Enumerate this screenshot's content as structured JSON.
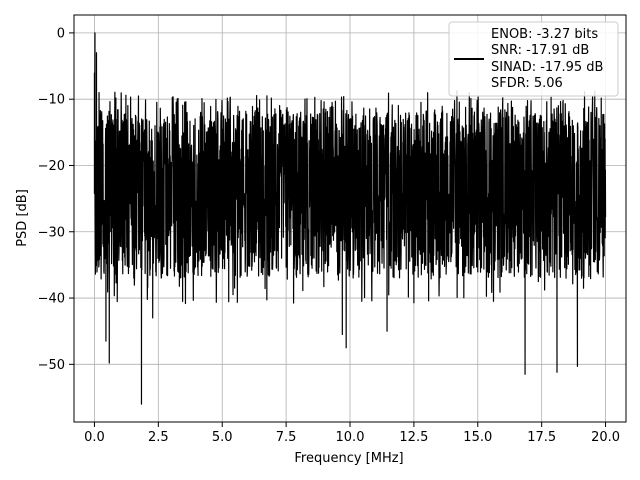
{
  "chart_data": {
    "type": "line",
    "title": "",
    "xlabel": "Frequency [MHz]",
    "ylabel": "PSD [dB]",
    "xlim": [
      -0.8,
      20.8
    ],
    "ylim": [
      -58.7,
      2.7
    ],
    "xticks": [
      0.0,
      2.5,
      5.0,
      7.5,
      10.0,
      12.5,
      15.0,
      17.5,
      20.0
    ],
    "xtick_labels": [
      "0.0",
      "2.5",
      "5.0",
      "7.5",
      "10.0",
      "12.5",
      "15.0",
      "17.5",
      "20.0"
    ],
    "yticks": [
      0,
      -10,
      -20,
      -30,
      -40,
      -50
    ],
    "ytick_labels": [
      "0",
      "−10",
      "−20",
      "−30",
      "−40",
      "−50"
    ],
    "grid": true,
    "legend": {
      "placement": "top-right",
      "entries": [
        "ENOB: -3.27 bits",
        "SNR: -17.91 dB",
        "SINAD: -17.95 dB",
        "SFDR: 5.06"
      ]
    },
    "series": [
      {
        "color": "#000000",
        "x_range": [
          0.0,
          20.0
        ],
        "noise_floor_db": -22,
        "typical_peak_db": -13,
        "typical_trough_db": -35,
        "max_point": {
          "x": 0.02,
          "y": 0.0
        },
        "notable_points": [
          {
            "x": 0.0,
            "y": -6.0
          },
          {
            "x": 0.02,
            "y": 0.0
          },
          {
            "x": 0.05,
            "y": -20.0
          },
          {
            "x": 0.08,
            "y": -3.0
          },
          {
            "x": 0.12,
            "y": -31.0
          },
          {
            "x": 0.18,
            "y": -9.0
          },
          {
            "x": 0.45,
            "y": -46.5
          },
          {
            "x": 0.58,
            "y": -49.8
          },
          {
            "x": 1.84,
            "y": -56.0
          },
          {
            "x": 2.28,
            "y": -43.0
          },
          {
            "x": 3.45,
            "y": -40.5
          },
          {
            "x": 6.75,
            "y": -9.5
          },
          {
            "x": 9.7,
            "y": -45.5
          },
          {
            "x": 9.85,
            "y": -47.5
          },
          {
            "x": 11.45,
            "y": -45.0
          },
          {
            "x": 16.85,
            "y": -51.5
          },
          {
            "x": 18.1,
            "y": -51.2
          },
          {
            "x": 18.9,
            "y": -50.3
          }
        ]
      }
    ]
  }
}
